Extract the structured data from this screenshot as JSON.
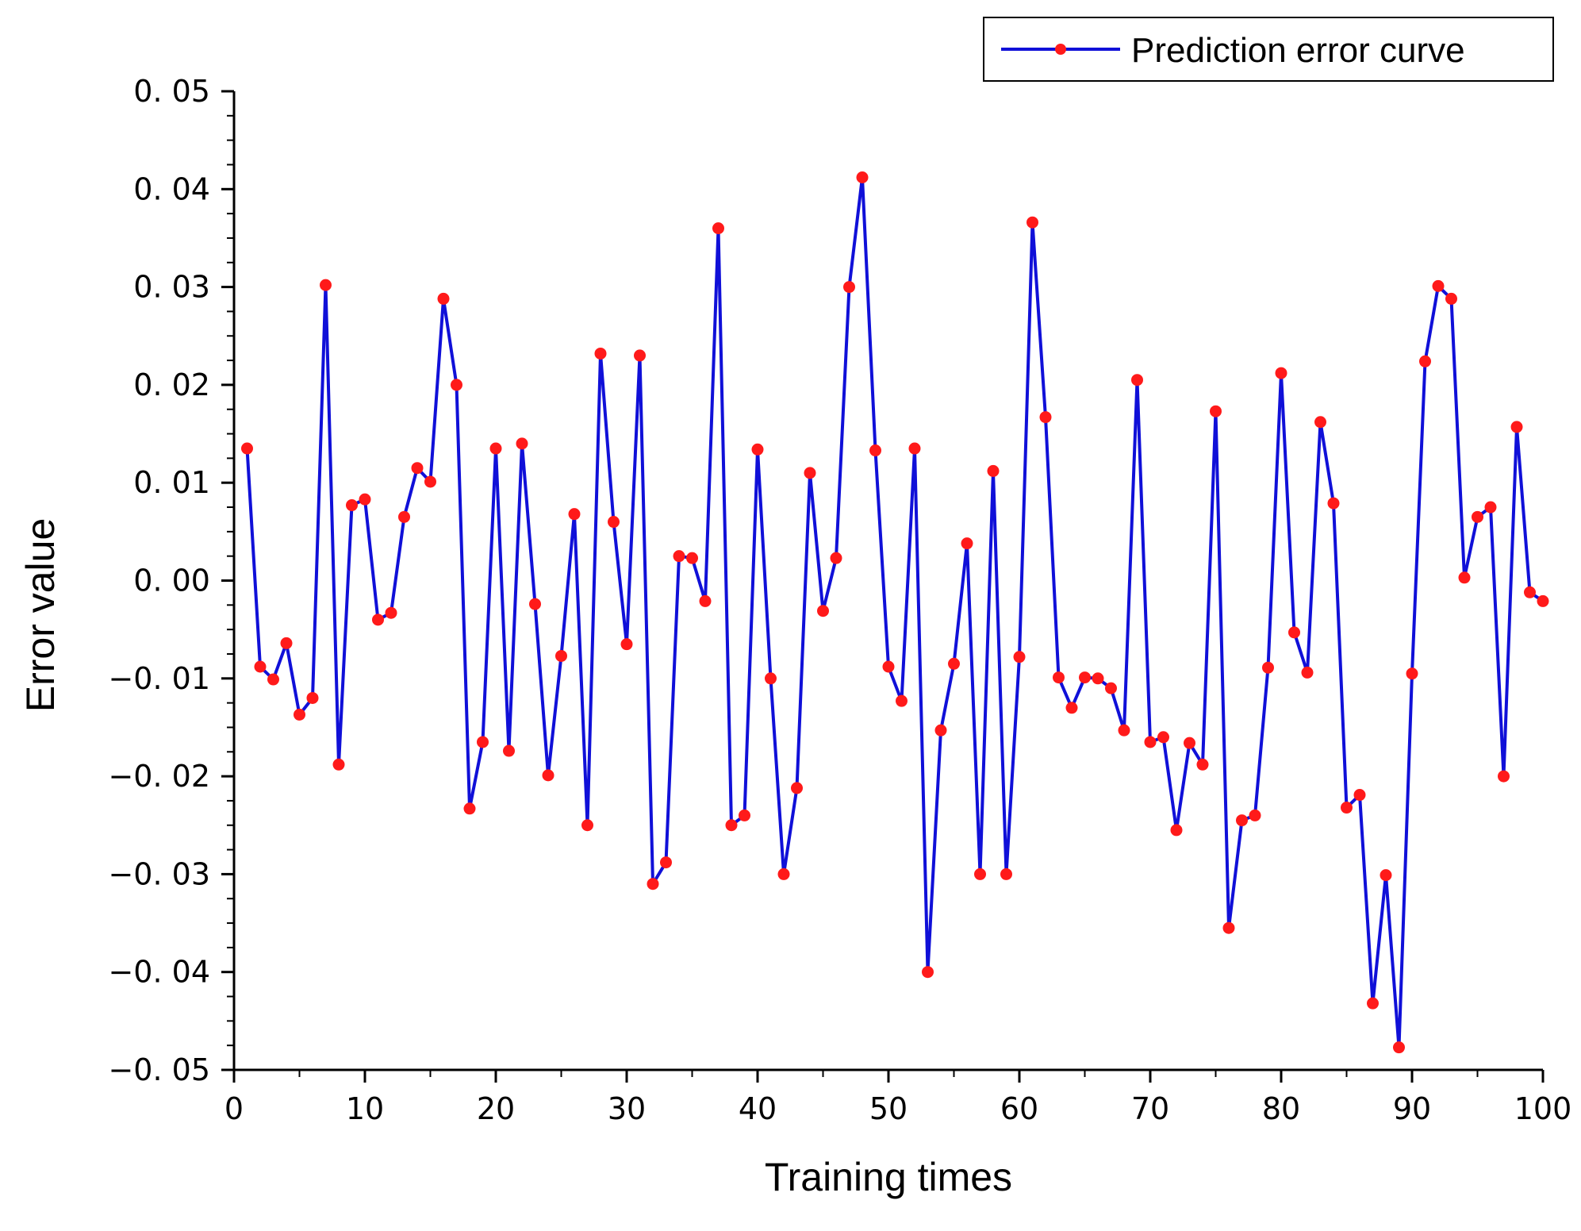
{
  "chart_data": {
    "type": "line",
    "title": "",
    "xlabel": "Training times",
    "ylabel": "Error value",
    "xlim": [
      0,
      100
    ],
    "ylim": [
      -0.05,
      0.05
    ],
    "x_ticks": [
      0,
      10,
      20,
      30,
      40,
      50,
      60,
      70,
      80,
      90,
      100
    ],
    "x_tick_labels": [
      "0",
      "10",
      "20",
      "30",
      "40",
      "50",
      "60",
      "70",
      "80",
      "90",
      "100"
    ],
    "y_ticks": [
      0.05,
      0.04,
      0.03,
      0.02,
      0.01,
      0.0,
      -0.01,
      -0.02,
      -0.03,
      -0.04,
      -0.05
    ],
    "y_tick_labels": [
      "0. 05",
      "0. 04",
      "0. 03",
      "0. 02",
      "0. 01",
      "0. 00",
      "−0. 01",
      "−0. 02",
      "−0. 03",
      "−0. 04",
      "−0. 05"
    ],
    "grid": false,
    "legend_position": "top-right",
    "colors": {
      "line": "#1010d8",
      "marker": "#ff1a1a",
      "axis": "#000000"
    },
    "series": [
      {
        "name": "Prediction error curve",
        "x": [
          1,
          2,
          3,
          4,
          5,
          6,
          7,
          8,
          9,
          10,
          11,
          12,
          13,
          14,
          15,
          16,
          17,
          18,
          19,
          20,
          21,
          22,
          23,
          24,
          25,
          26,
          27,
          28,
          29,
          30,
          31,
          32,
          33,
          34,
          35,
          36,
          37,
          38,
          39,
          40,
          41,
          42,
          43,
          44,
          45,
          46,
          47,
          48,
          49,
          50,
          51,
          52,
          53,
          54,
          55,
          56,
          57,
          58,
          59,
          60,
          61,
          62,
          63,
          64,
          65,
          66,
          67,
          68,
          69,
          70,
          71,
          72,
          73,
          74,
          75,
          76,
          77,
          78,
          79,
          80,
          81,
          82,
          83,
          84,
          85,
          86,
          87,
          88,
          89,
          90,
          91,
          92,
          93,
          94,
          95,
          96,
          97,
          98,
          99,
          100
        ],
        "values": [
          0.0135,
          -0.0088,
          -0.0101,
          -0.0064,
          -0.0137,
          -0.012,
          0.0302,
          -0.0188,
          0.0077,
          0.0083,
          -0.004,
          -0.0033,
          0.0065,
          0.0115,
          0.0101,
          0.0288,
          0.02,
          -0.0233,
          -0.0165,
          0.0135,
          -0.0174,
          0.014,
          -0.0024,
          -0.0199,
          -0.0077,
          0.0068,
          -0.025,
          0.0232,
          0.006,
          -0.0065,
          0.023,
          -0.031,
          -0.0288,
          0.0025,
          0.0023,
          -0.0021,
          0.036,
          -0.025,
          -0.024,
          0.0134,
          -0.01,
          -0.03,
          -0.0212,
          0.011,
          -0.0031,
          0.0023,
          0.03,
          0.0412,
          0.0133,
          -0.0088,
          -0.0123,
          0.0135,
          -0.04,
          -0.0153,
          -0.0085,
          0.0038,
          -0.03,
          0.0112,
          -0.03,
          -0.0078,
          0.0366,
          0.0167,
          -0.0099,
          -0.013,
          -0.0099,
          -0.01,
          -0.011,
          -0.0153,
          0.0205,
          -0.0165,
          -0.016,
          -0.0255,
          -0.0166,
          -0.0188,
          0.0173,
          -0.0355,
          -0.0245,
          -0.024,
          -0.0089,
          0.0212,
          -0.0053,
          -0.0094,
          0.0162,
          0.0079,
          -0.0232,
          -0.0219,
          -0.0432,
          -0.0301,
          -0.0477,
          -0.0095,
          0.0224,
          0.0301,
          0.0288,
          0.0003,
          0.0065,
          0.0075,
          -0.02,
          0.0157,
          -0.0012,
          -0.0021
        ]
      }
    ]
  }
}
